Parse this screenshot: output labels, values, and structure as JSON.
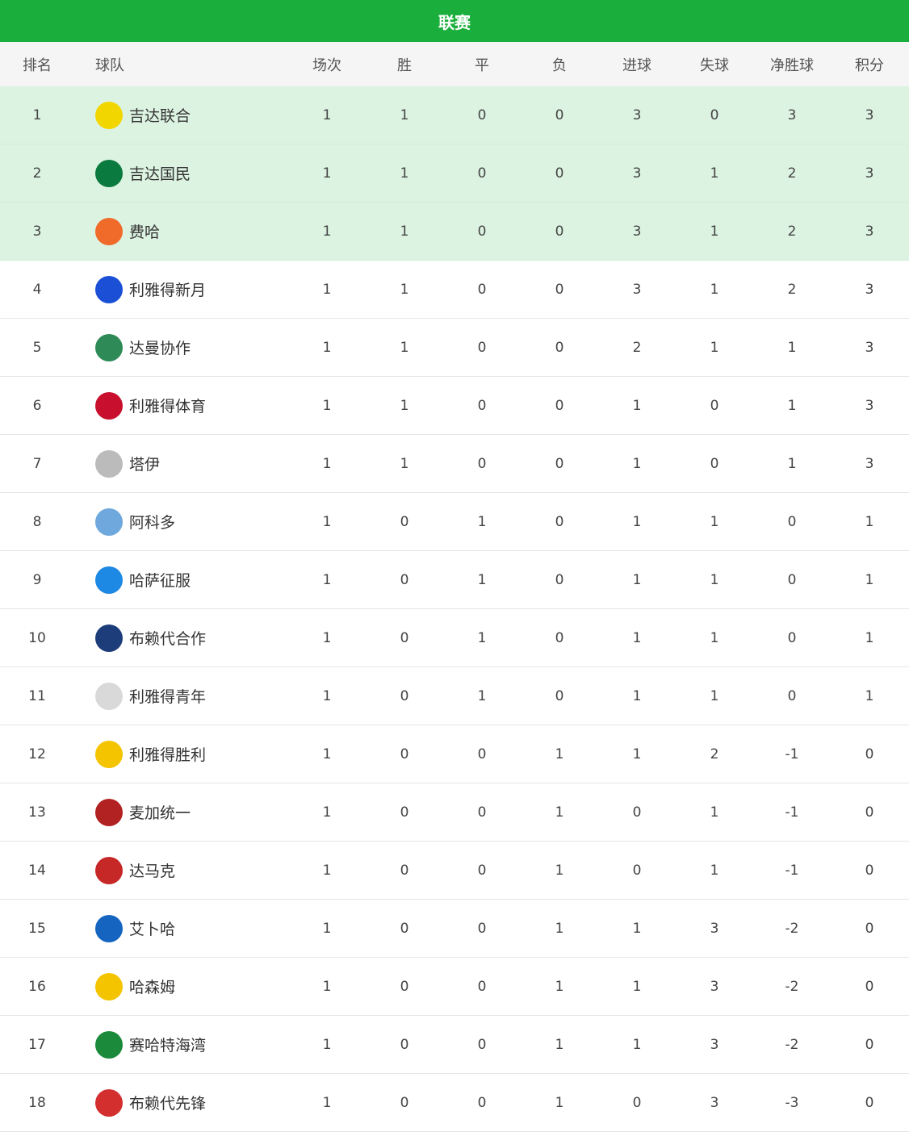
{
  "title": "联赛",
  "columns": [
    "排名",
    "球队",
    "场次",
    "胜",
    "平",
    "负",
    "进球",
    "失球",
    "净胜球",
    "积分"
  ],
  "highlight_color": "#dcf3e1",
  "header_color": "#1aaf3c",
  "rows": [
    {
      "rank": "1",
      "team": "吉达联合",
      "logo_color": "#f2d600",
      "p": "1",
      "w": "1",
      "d": "0",
      "l": "0",
      "gf": "3",
      "ga": "0",
      "gd": "3",
      "pts": "3"
    },
    {
      "rank": "2",
      "team": "吉达国民",
      "logo_color": "#0b7a3e",
      "p": "1",
      "w": "1",
      "d": "0",
      "l": "0",
      "gf": "3",
      "ga": "1",
      "gd": "2",
      "pts": "3"
    },
    {
      "rank": "3",
      "team": "费哈",
      "logo_color": "#f06a2a",
      "p": "1",
      "w": "1",
      "d": "0",
      "l": "0",
      "gf": "3",
      "ga": "1",
      "gd": "2",
      "pts": "3"
    },
    {
      "rank": "4",
      "team": "利雅得新月",
      "logo_color": "#1a4fd6",
      "p": "1",
      "w": "1",
      "d": "0",
      "l": "0",
      "gf": "3",
      "ga": "1",
      "gd": "2",
      "pts": "3"
    },
    {
      "rank": "5",
      "team": "达曼协作",
      "logo_color": "#2e8b57",
      "p": "1",
      "w": "1",
      "d": "0",
      "l": "0",
      "gf": "2",
      "ga": "1",
      "gd": "1",
      "pts": "3"
    },
    {
      "rank": "6",
      "team": "利雅得体育",
      "logo_color": "#c8102e",
      "p": "1",
      "w": "1",
      "d": "0",
      "l": "0",
      "gf": "1",
      "ga": "0",
      "gd": "1",
      "pts": "3"
    },
    {
      "rank": "7",
      "team": "塔伊",
      "logo_color": "#bbbbbb",
      "p": "1",
      "w": "1",
      "d": "0",
      "l": "0",
      "gf": "1",
      "ga": "0",
      "gd": "1",
      "pts": "3"
    },
    {
      "rank": "8",
      "team": "阿科多",
      "logo_color": "#6fa8dc",
      "p": "1",
      "w": "0",
      "d": "1",
      "l": "0",
      "gf": "1",
      "ga": "1",
      "gd": "0",
      "pts": "1"
    },
    {
      "rank": "9",
      "team": "哈萨征服",
      "logo_color": "#1e88e5",
      "p": "1",
      "w": "0",
      "d": "1",
      "l": "0",
      "gf": "1",
      "ga": "1",
      "gd": "0",
      "pts": "1"
    },
    {
      "rank": "10",
      "team": "布赖代合作",
      "logo_color": "#1c3d7a",
      "p": "1",
      "w": "0",
      "d": "1",
      "l": "0",
      "gf": "1",
      "ga": "1",
      "gd": "0",
      "pts": "1"
    },
    {
      "rank": "11",
      "team": "利雅得青年",
      "logo_color": "#d9d9d9",
      "p": "1",
      "w": "0",
      "d": "1",
      "l": "0",
      "gf": "1",
      "ga": "1",
      "gd": "0",
      "pts": "1"
    },
    {
      "rank": "12",
      "team": "利雅得胜利",
      "logo_color": "#f5c400",
      "p": "1",
      "w": "0",
      "d": "0",
      "l": "1",
      "gf": "1",
      "ga": "2",
      "gd": "-1",
      "pts": "0"
    },
    {
      "rank": "13",
      "team": "麦加统一",
      "logo_color": "#b22222",
      "p": "1",
      "w": "0",
      "d": "0",
      "l": "1",
      "gf": "0",
      "ga": "1",
      "gd": "-1",
      "pts": "0"
    },
    {
      "rank": "14",
      "team": "达马克",
      "logo_color": "#c62828",
      "p": "1",
      "w": "0",
      "d": "0",
      "l": "1",
      "gf": "0",
      "ga": "1",
      "gd": "-1",
      "pts": "0"
    },
    {
      "rank": "15",
      "team": "艾卜哈",
      "logo_color": "#1565c0",
      "p": "1",
      "w": "0",
      "d": "0",
      "l": "1",
      "gf": "1",
      "ga": "3",
      "gd": "-2",
      "pts": "0"
    },
    {
      "rank": "16",
      "team": "哈森姆",
      "logo_color": "#f5c400",
      "p": "1",
      "w": "0",
      "d": "0",
      "l": "1",
      "gf": "1",
      "ga": "3",
      "gd": "-2",
      "pts": "0"
    },
    {
      "rank": "17",
      "team": "赛哈特海湾",
      "logo_color": "#1b8a3a",
      "p": "1",
      "w": "0",
      "d": "0",
      "l": "1",
      "gf": "1",
      "ga": "3",
      "gd": "-2",
      "pts": "0"
    },
    {
      "rank": "18",
      "team": "布赖代先锋",
      "logo_color": "#d32f2f",
      "p": "1",
      "w": "0",
      "d": "0",
      "l": "1",
      "gf": "0",
      "ga": "3",
      "gd": "-3",
      "pts": "0"
    }
  ]
}
